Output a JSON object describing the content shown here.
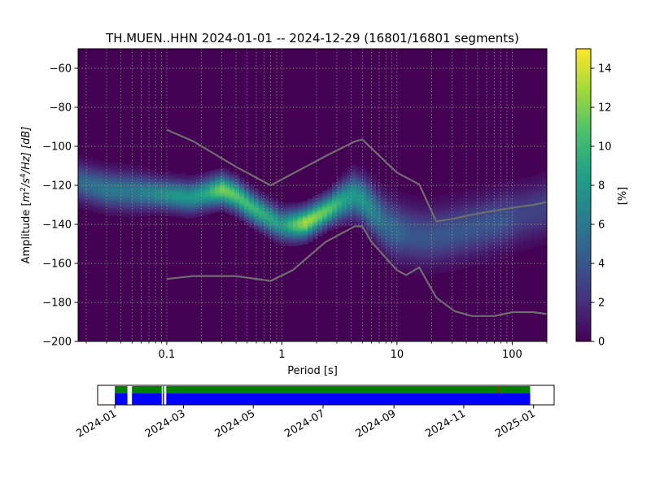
{
  "title": "TH.MUEN..HHN   2024-01-01 -- 2024-12-29  (16801/16801 segments)",
  "colorbar": {
    "label": "[%]",
    "range": [
      0,
      15
    ],
    "ticks": [
      "0",
      "2",
      "4",
      "6",
      "8",
      "10",
      "12",
      "14"
    ],
    "colors": [
      "#440154",
      "#46327e",
      "#365c8d",
      "#277f8e",
      "#1fa187",
      "#4ac16d",
      "#a0da39",
      "#fde725"
    ]
  },
  "chart_data": [
    {
      "type": "heatmap",
      "name": "probabilistic-psd",
      "xlabel": "Period [s]",
      "ylabel": "Amplitude [m²/s⁴/Hz] [dB]",
      "ylabel_parts": {
        "pre": "Amplitude [",
        "m": "m",
        "sup2": "2",
        "mid": "/s",
        "sup4": "4",
        "post": "/Hz] [dB]"
      },
      "x_scale": "log",
      "xlim": [
        0.017,
        200
      ],
      "ylim": [
        -200,
        -50
      ],
      "x_ticks": [
        {
          "value": 0.1,
          "label": "0.1"
        },
        {
          "value": 1,
          "label": "1"
        },
        {
          "value": 10,
          "label": "10"
        },
        {
          "value": 100,
          "label": "100"
        }
      ],
      "y_ticks": [
        {
          "value": -60,
          "label": "−60"
        },
        {
          "value": -80,
          "label": "−80"
        },
        {
          "value": -100,
          "label": "−100"
        },
        {
          "value": -120,
          "label": "−120"
        },
        {
          "value": -140,
          "label": "−140"
        },
        {
          "value": -160,
          "label": "−160"
        },
        {
          "value": -180,
          "label": "−180"
        },
        {
          "value": -200,
          "label": "−200"
        }
      ],
      "grid": true,
      "background_color": "#440154",
      "density_mode": {
        "period": [
          0.017,
          0.03,
          0.05,
          0.08,
          0.12,
          0.16,
          0.22,
          0.3,
          0.4,
          0.55,
          0.8,
          1.0,
          1.3,
          1.6,
          2.0,
          2.6,
          3.3,
          4.2,
          5.0,
          6.0,
          7.0,
          8.0,
          10,
          13,
          16,
          20,
          30,
          50,
          80,
          120,
          200
        ],
        "amplitude_db": [
          -118,
          -122,
          -123,
          -124,
          -125,
          -126,
          -124,
          -122,
          -125,
          -131,
          -137,
          -140,
          -140,
          -139,
          -136,
          -132,
          -128,
          -125,
          -127,
          -132,
          -136,
          -140,
          -143,
          -145,
          -146,
          -146,
          -144,
          -141,
          -138,
          -135,
          -131
        ],
        "peak_percent": [
          5,
          6,
          6,
          7,
          8,
          8,
          9,
          12,
          11,
          10,
          9,
          8,
          11,
          13,
          12,
          11,
          9,
          8,
          8,
          7,
          6,
          5,
          5,
          4,
          4,
          4,
          4,
          4,
          4,
          3,
          3
        ],
        "spread_db": [
          6,
          6,
          6,
          5,
          5,
          5,
          5,
          5,
          5,
          5,
          5,
          5,
          5,
          5,
          5,
          5,
          6,
          7,
          7,
          8,
          8,
          9,
          9,
          9,
          9,
          9,
          9,
          9,
          9,
          9,
          9
        ]
      },
      "series": [
        {
          "name": "",
          "role": "noise-model-upper",
          "color": "#6e6e6e",
          "x": [
            0.1,
            0.17,
            0.4,
            0.8,
            1.24,
            2.4,
            4.3,
            5.0,
            6.0,
            10.0,
            12.0,
            15.6,
            21.9,
            31.6,
            45.0,
            70.0,
            101.0,
            154.0,
            200.0
          ],
          "y": [
            -91.5,
            -97.4,
            -110.5,
            -120.0,
            -114.0,
            -105.0,
            -97.5,
            -96.5,
            -101.0,
            -113.5,
            -116.0,
            -119.5,
            -138.5,
            -137.0,
            -135.0,
            -133.0,
            -131.5,
            -130.0,
            -128.5
          ]
        },
        {
          "name": "",
          "role": "noise-model-lower",
          "color": "#6e6e6e",
          "x": [
            0.1,
            0.17,
            0.4,
            0.8,
            1.24,
            2.4,
            4.3,
            5.0,
            6.0,
            10.0,
            12.0,
            15.6,
            21.9,
            31.6,
            45.0,
            70.0,
            101.0,
            154.0,
            200.0
          ],
          "y": [
            -168.0,
            -166.5,
            -166.5,
            -169.0,
            -163.5,
            -149.0,
            -141.0,
            -141.0,
            -149.0,
            -163.5,
            -166.0,
            -162.0,
            -177.5,
            -184.5,
            -187.0,
            -187.0,
            -185.0,
            -185.0,
            -186.0
          ]
        }
      ]
    },
    {
      "type": "bar",
      "name": "data-coverage",
      "xlim": [
        "2023-12-17",
        "2025-01-19"
      ],
      "x_ticks": [
        {
          "value": "2024-01-01",
          "label": "2024-01"
        },
        {
          "value": "2024-03-01",
          "label": "2024-03"
        },
        {
          "value": "2024-05-01",
          "label": "2024-05"
        },
        {
          "value": "2024-07-01",
          "label": "2024-07"
        },
        {
          "value": "2024-09-01",
          "label": "2024-09"
        },
        {
          "value": "2024-11-01",
          "label": "2024-11"
        },
        {
          "value": "2025-01-01",
          "label": "2025-01"
        }
      ],
      "series": [
        {
          "name": "",
          "role": "data-availability",
          "color": "#0000ff",
          "spans": [
            [
              "2024-01-01",
              "2024-01-12"
            ],
            [
              "2024-01-16",
              "2024-02-11"
            ],
            [
              "2024-02-12",
              "2024-02-13"
            ],
            [
              "2024-02-15",
              "2024-12-29"
            ]
          ]
        },
        {
          "name": "",
          "role": "psd-segments",
          "color": "#008000",
          "spans": [
            [
              "2024-01-01",
              "2024-01-12"
            ],
            [
              "2024-01-16",
              "2024-02-11"
            ],
            [
              "2024-02-12",
              "2024-02-13"
            ],
            [
              "2024-02-15",
              "2024-12-29"
            ]
          ]
        }
      ],
      "markers": [
        {
          "date": "2024-01-24",
          "color": "#ff0000"
        },
        {
          "date": "2024-12-01",
          "color": "#ff0000"
        }
      ]
    }
  ]
}
